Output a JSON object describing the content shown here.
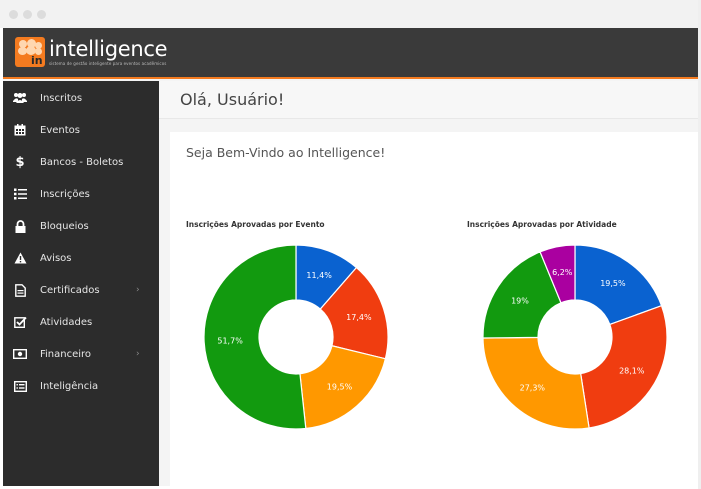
{
  "brand": {
    "name": "intelligence",
    "mark": "in",
    "tagline": "sistema de gestão inteligente para eventos acadêmicos"
  },
  "sidebar": {
    "items": [
      {
        "label": "Inscritos",
        "icon": "users-icon",
        "chevron": ""
      },
      {
        "label": "Eventos",
        "icon": "calendar-icon",
        "chevron": ""
      },
      {
        "label": "Bancos - Boletos",
        "icon": "dollar-icon",
        "chevron": ""
      },
      {
        "label": "Inscrições",
        "icon": "list-icon",
        "chevron": ""
      },
      {
        "label": "Bloqueios",
        "icon": "lock-icon",
        "chevron": ""
      },
      {
        "label": "Avisos",
        "icon": "warning-icon",
        "chevron": ""
      },
      {
        "label": "Certificados",
        "icon": "file-icon",
        "chevron": "›"
      },
      {
        "label": "Atividades",
        "icon": "checkbox-icon",
        "chevron": ""
      },
      {
        "label": "Financeiro",
        "icon": "money-icon",
        "chevron": "›"
      },
      {
        "label": "Inteligência",
        "icon": "card-list-icon",
        "chevron": ""
      }
    ]
  },
  "header": {
    "greeting": "Olá, Usuário!"
  },
  "main": {
    "welcome": "Seja Bem-Vindo ao Intelligence!"
  },
  "colors": {
    "accent": "#f47b20",
    "blue": "#0a62d0",
    "red": "#f03d10",
    "orange": "#ff9800",
    "green": "#129a0f",
    "purple": "#aa00a0"
  },
  "chart_data": [
    {
      "type": "pie",
      "title": "Inscrições Aprovadas por Evento",
      "values": [
        11.4,
        17.4,
        19.5,
        51.7
      ],
      "labels": [
        "11,4%",
        "17,4%",
        "19,5%",
        "51,7%"
      ],
      "colors": [
        "#0a62d0",
        "#f03d10",
        "#ff9800",
        "#129a0f"
      ]
    },
    {
      "type": "pie",
      "title": "Inscrições Aprovadas por Atividade",
      "values": [
        19.5,
        28.1,
        27.3,
        19,
        6.2
      ],
      "labels": [
        "19,5%",
        "28,1%",
        "27,3%",
        "19%",
        "6,2%"
      ],
      "colors": [
        "#0a62d0",
        "#f03d10",
        "#ff9800",
        "#129a0f",
        "#aa00a0"
      ]
    }
  ]
}
